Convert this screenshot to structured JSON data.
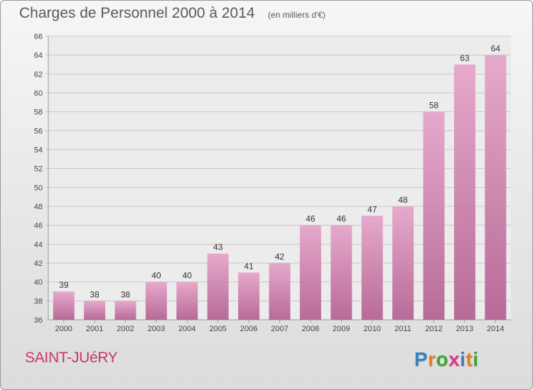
{
  "header": {
    "title": "Charges de Personnel 2000 à 2014",
    "subtitle": "(en milliers d'€)"
  },
  "footer": {
    "city": "SAINT-JUéRY",
    "brand": "Proxiti",
    "brand_letters": [
      {
        "ch": "P",
        "color": "#3b82c4"
      },
      {
        "ch": "r",
        "color": "#e2801e"
      },
      {
        "ch": "o",
        "color": "#3ea535"
      },
      {
        "ch": "x",
        "color": "#e2348a"
      },
      {
        "ch": "i",
        "color": "#3b82c4"
      },
      {
        "ch": "t",
        "color": "#e2801e"
      },
      {
        "ch": "i",
        "color": "#3ea535"
      }
    ]
  },
  "colors": {
    "bar_light": "#e6a9cc",
    "bar_dark": "#b76b97",
    "grid": "#c8c8c8",
    "axis_text": "#444444",
    "city": "#c8366a"
  },
  "chart_data": {
    "type": "bar",
    "categories": [
      "2000",
      "2001",
      "2002",
      "2003",
      "2004",
      "2005",
      "2006",
      "2007",
      "2008",
      "2009",
      "2010",
      "2011",
      "2012",
      "2013",
      "2014"
    ],
    "values": [
      39,
      38,
      38,
      40,
      40,
      43,
      41,
      42,
      46,
      46,
      47,
      48,
      58,
      63,
      64
    ],
    "data_labels": [
      "39",
      "38",
      "38",
      "40",
      "40",
      "43",
      "41",
      "42",
      "46",
      "46",
      "47",
      "48",
      "58",
      "63",
      "64"
    ],
    "ylim": [
      36,
      66
    ],
    "yticks": [
      36,
      38,
      40,
      42,
      44,
      46,
      48,
      50,
      52,
      54,
      56,
      58,
      60,
      62,
      64,
      66
    ],
    "grid": true,
    "legend": "none",
    "xlabel": "",
    "ylabel": ""
  }
}
